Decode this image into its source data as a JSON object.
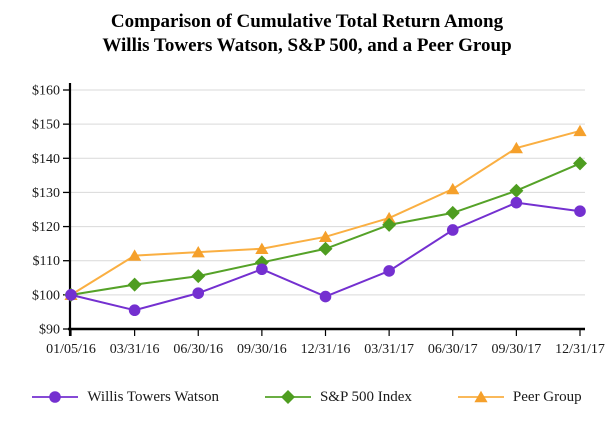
{
  "title": {
    "line1": "Comparison of Cumulative Total Return Among",
    "line2": "Willis Towers Watson, S&P 500, and a Peer Group"
  },
  "chart_data": {
    "type": "line",
    "categories": [
      "01/05/16",
      "03/31/16",
      "06/30/16",
      "09/30/16",
      "12/31/16",
      "03/31/17",
      "06/30/17",
      "09/30/17",
      "12/31/17"
    ],
    "series": [
      {
        "name": "Willis Towers Watson",
        "marker": "circle",
        "color": "#7430D0",
        "line_color": "#7430D0",
        "values": [
          100,
          95.5,
          100.5,
          107.5,
          99.5,
          107,
          119,
          127,
          124.5
        ]
      },
      {
        "name": "S&P 500 Index",
        "marker": "diamond",
        "color": "#4E9D20",
        "line_color": "#55A228",
        "values": [
          100,
          103,
          105.5,
          109.5,
          113.5,
          120.5,
          124,
          130.5,
          138.5
        ]
      },
      {
        "name": "Peer Group",
        "marker": "triangle",
        "color": "#F5A02B",
        "line_color": "#FAAF42",
        "values": [
          100,
          111.5,
          112.5,
          113.5,
          117,
          122.5,
          131,
          143,
          148
        ]
      }
    ],
    "ylim": [
      90,
      160
    ],
    "ytick_step": 10,
    "ytick_prefix": "$",
    "grid": true,
    "legend_position": "bottom"
  },
  "colors": {
    "grid": "#D9D9D9",
    "axis": "#000000",
    "text": "#1A1A1A"
  }
}
